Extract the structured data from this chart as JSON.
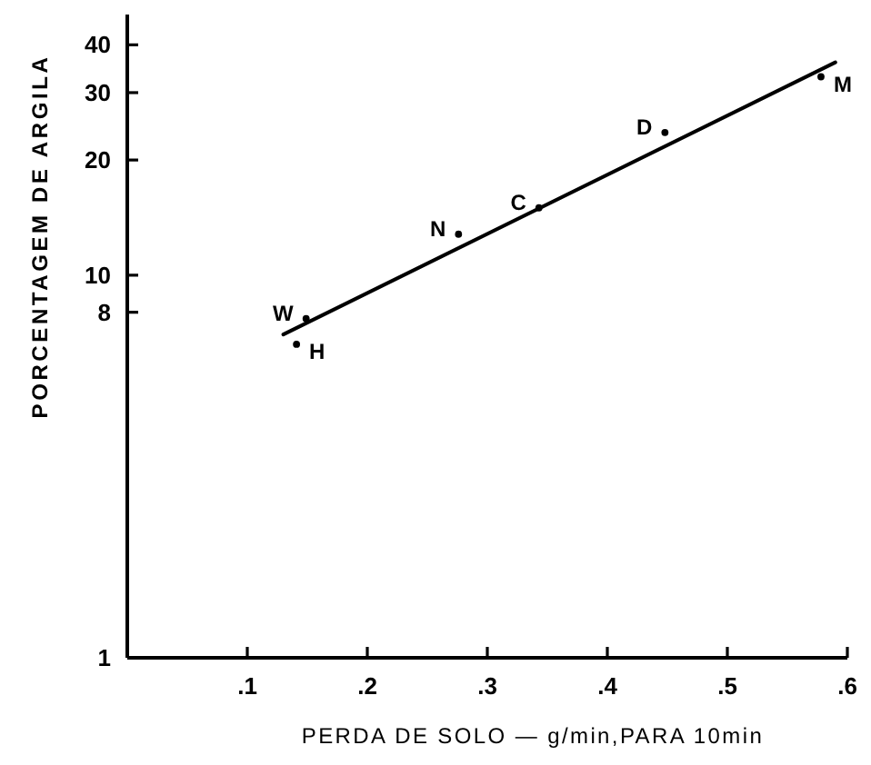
{
  "chart_data": {
    "type": "scatter",
    "xlabel": "PERDA DE SOLO — g/min,PARA 10min",
    "ylabel": "PORCENTAGEM DE ARGILA",
    "xlim": [
      0,
      0.6
    ],
    "xticks": [
      {
        "value": 0.1,
        "label": ".1"
      },
      {
        "value": 0.2,
        "label": ".2"
      },
      {
        "value": 0.3,
        "label": ".3"
      },
      {
        "value": 0.4,
        "label": ".4"
      },
      {
        "value": 0.5,
        "label": ".5"
      },
      {
        "value": 0.6,
        "label": ".6"
      }
    ],
    "ylim": [
      1,
      48
    ],
    "yticks": [
      1,
      8,
      10,
      20,
      30,
      40
    ],
    "log": true,
    "series": [
      {
        "color": "#000000",
        "marker": "circle",
        "x": [
          0.149,
          0.141,
          0.276,
          0.343,
          0.448,
          0.578
        ],
        "values": [
          7.7,
          6.6,
          12.8,
          15.0,
          23.6,
          33.0
        ]
      },
      {
        "type": "line",
        "color": "#000000",
        "x": [
          0.13,
          0.59
        ],
        "values": [
          7,
          36
        ]
      }
    ],
    "annotations": [
      {
        "text": "W",
        "x": 0.149,
        "y": 7.7
      },
      {
        "text": "H",
        "x": 0.141,
        "y": 6.6
      },
      {
        "text": "N",
        "x": 0.276,
        "y": 12.8
      },
      {
        "text": "C",
        "x": 0.343,
        "y": 15.0
      },
      {
        "text": "D",
        "x": 0.448,
        "y": 23.6
      },
      {
        "text": "M",
        "x": 0.578,
        "y": 33.0
      }
    ]
  }
}
